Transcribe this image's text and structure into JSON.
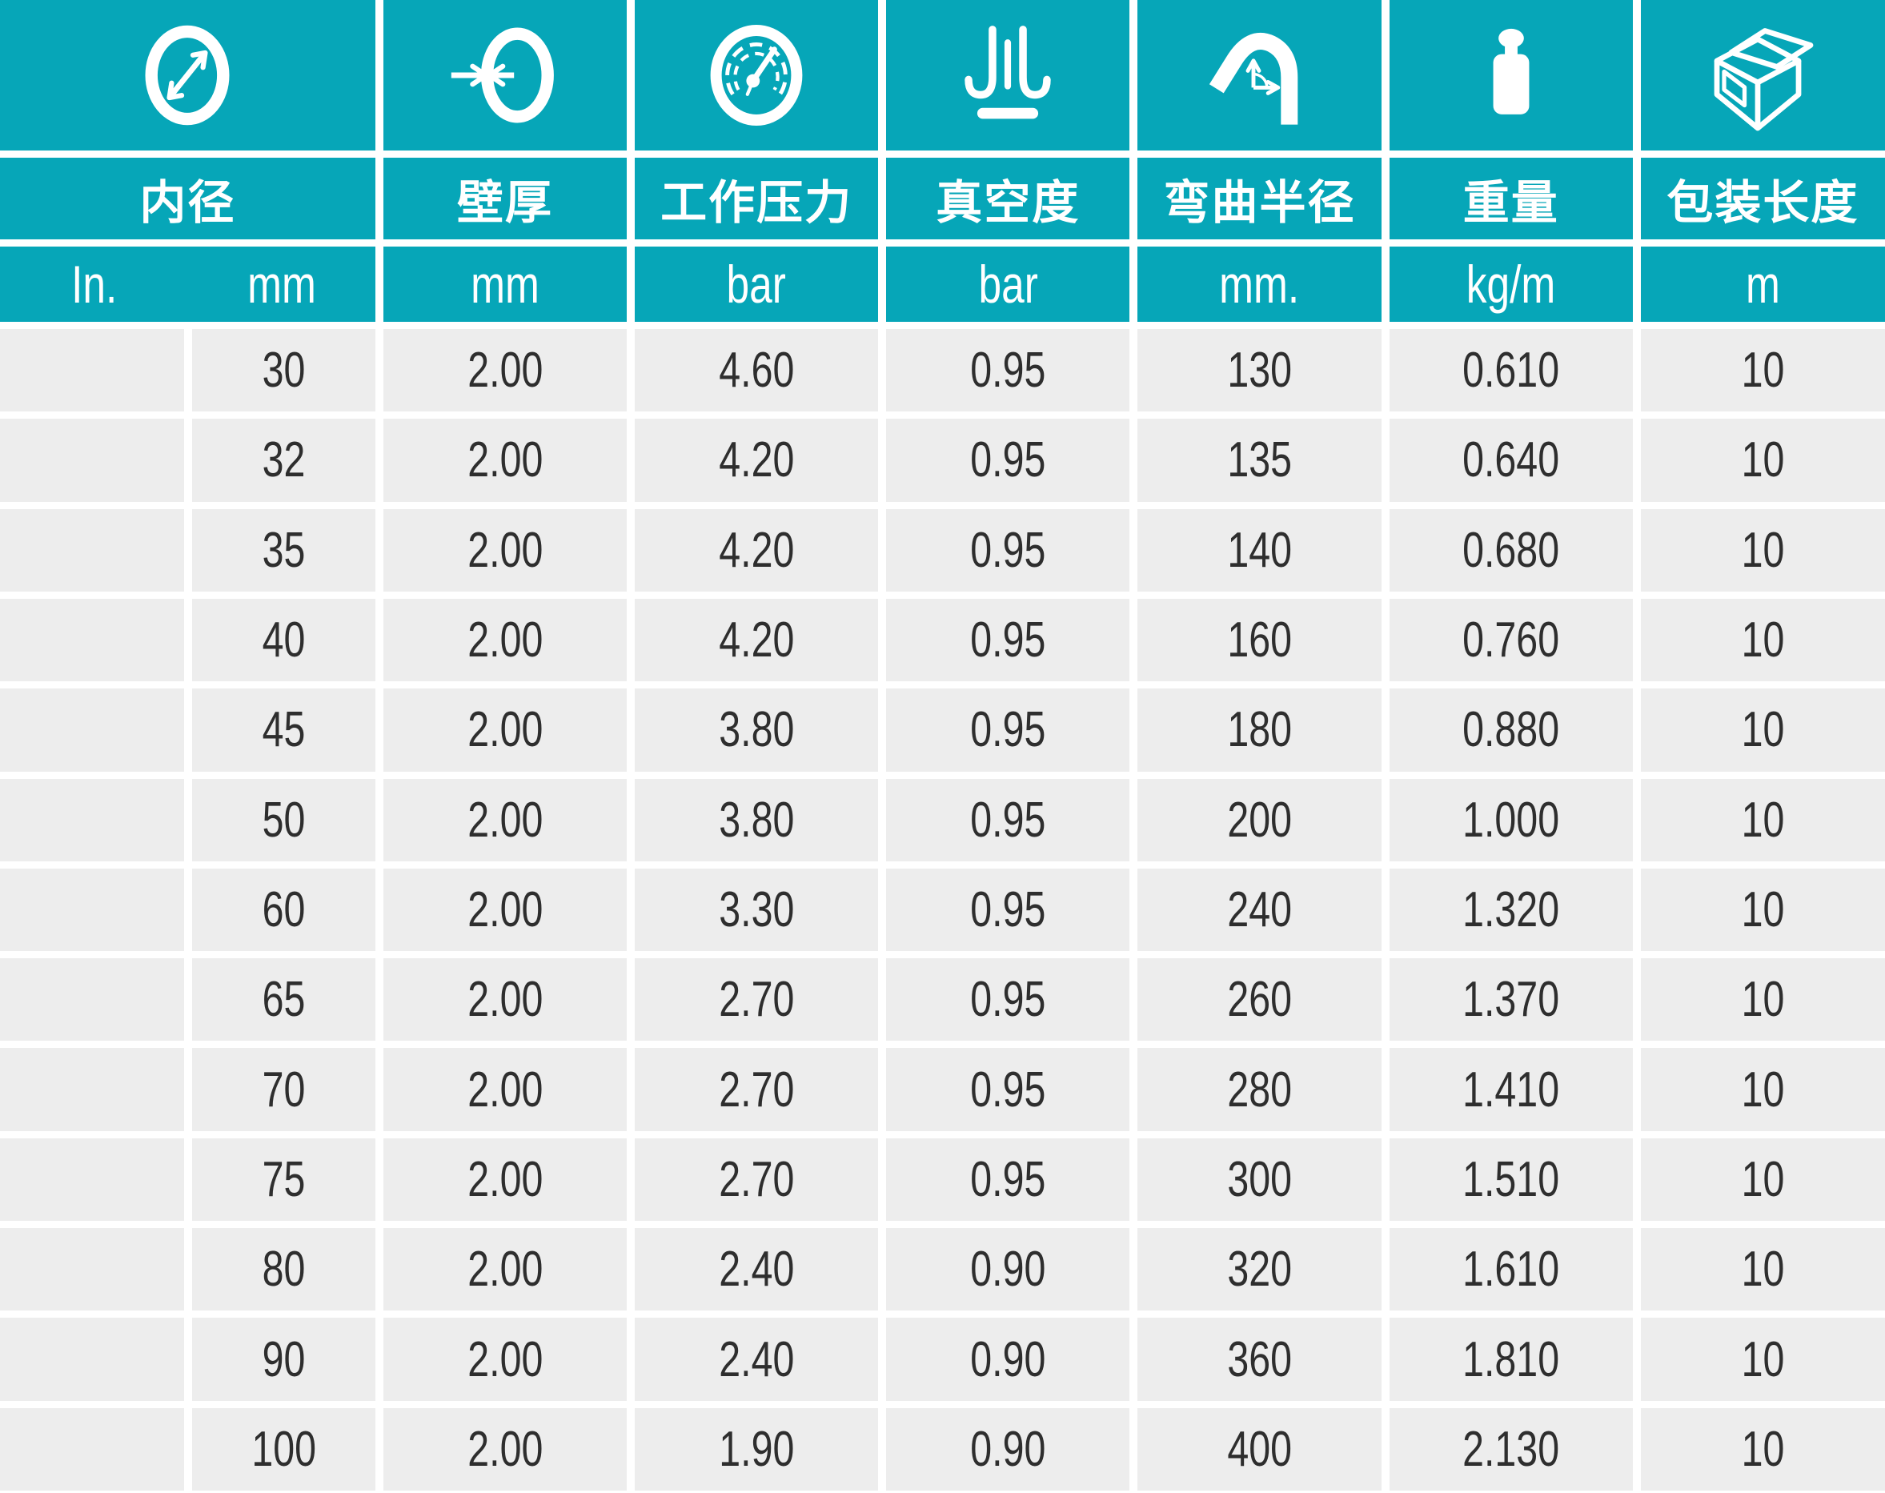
{
  "chart_data": {
    "type": "table",
    "columns": [
      {
        "label": "内径",
        "icon": "diameter-icon",
        "unit_in": "In.",
        "unit_mm": "mm"
      },
      {
        "label": "壁厚",
        "icon": "wall-thickness-icon",
        "unit": "mm"
      },
      {
        "label": "工作压力",
        "icon": "pressure-gauge-icon",
        "unit": "bar"
      },
      {
        "label": "真空度",
        "icon": "vacuum-icon",
        "unit": "bar"
      },
      {
        "label": "弯曲半径",
        "icon": "bend-radius-icon",
        "unit": "mm."
      },
      {
        "label": "重量",
        "icon": "weight-icon",
        "unit": "kg/m"
      },
      {
        "label": "包装长度",
        "icon": "package-box-icon",
        "unit": "m"
      }
    ],
    "rows": [
      {
        "in": "",
        "mm": "30",
        "wall": "2.00",
        "pressure": "4.60",
        "vacuum": "0.95",
        "bend": "130",
        "weight": "0.610",
        "length": "10"
      },
      {
        "in": "",
        "mm": "32",
        "wall": "2.00",
        "pressure": "4.20",
        "vacuum": "0.95",
        "bend": "135",
        "weight": "0.640",
        "length": "10"
      },
      {
        "in": "",
        "mm": "35",
        "wall": "2.00",
        "pressure": "4.20",
        "vacuum": "0.95",
        "bend": "140",
        "weight": "0.680",
        "length": "10"
      },
      {
        "in": "",
        "mm": "40",
        "wall": "2.00",
        "pressure": "4.20",
        "vacuum": "0.95",
        "bend": "160",
        "weight": "0.760",
        "length": "10"
      },
      {
        "in": "",
        "mm": "45",
        "wall": "2.00",
        "pressure": "3.80",
        "vacuum": "0.95",
        "bend": "180",
        "weight": "0.880",
        "length": "10"
      },
      {
        "in": "",
        "mm": "50",
        "wall": "2.00",
        "pressure": "3.80",
        "vacuum": "0.95",
        "bend": "200",
        "weight": "1.000",
        "length": "10"
      },
      {
        "in": "",
        "mm": "60",
        "wall": "2.00",
        "pressure": "3.30",
        "vacuum": "0.95",
        "bend": "240",
        "weight": "1.320",
        "length": "10"
      },
      {
        "in": "",
        "mm": "65",
        "wall": "2.00",
        "pressure": "2.70",
        "vacuum": "0.95",
        "bend": "260",
        "weight": "1.370",
        "length": "10"
      },
      {
        "in": "",
        "mm": "70",
        "wall": "2.00",
        "pressure": "2.70",
        "vacuum": "0.95",
        "bend": "280",
        "weight": "1.410",
        "length": "10"
      },
      {
        "in": "",
        "mm": "75",
        "wall": "2.00",
        "pressure": "2.70",
        "vacuum": "0.95",
        "bend": "300",
        "weight": "1.510",
        "length": "10"
      },
      {
        "in": "",
        "mm": "80",
        "wall": "2.00",
        "pressure": "2.40",
        "vacuum": "0.90",
        "bend": "320",
        "weight": "1.610",
        "length": "10"
      },
      {
        "in": "",
        "mm": "90",
        "wall": "2.00",
        "pressure": "2.40",
        "vacuum": "0.90",
        "bend": "360",
        "weight": "1.810",
        "length": "10"
      },
      {
        "in": "",
        "mm": "100",
        "wall": "2.00",
        "pressure": "1.90",
        "vacuum": "0.90",
        "bend": "400",
        "weight": "2.130",
        "length": "10"
      }
    ]
  },
  "theme": {
    "header_color": "#06a6b8",
    "cell_color": "#ededed",
    "text_color": "#2e2e2e",
    "background": "#ffffff"
  }
}
